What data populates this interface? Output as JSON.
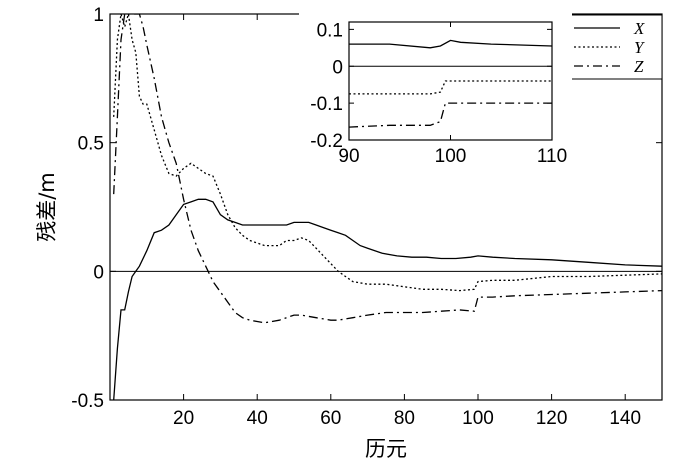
{
  "chart_data": [
    {
      "type": "line",
      "title": "",
      "xlabel": "历元",
      "ylabel": "残差/m",
      "xlim": [
        0,
        150
      ],
      "ylim": [
        -0.5,
        1
      ],
      "x_ticks": [
        "20",
        "40",
        "60",
        "80",
        "100",
        "120",
        "140"
      ],
      "y_ticks": [
        "-0.5",
        "0",
        "0.5",
        "1"
      ],
      "reference_line_y": 0,
      "grid": false,
      "legend_position": "top-right",
      "series": [
        {
          "name": "X",
          "style": "solid",
          "x": [
            1,
            2,
            3,
            4,
            5,
            6,
            7,
            8,
            10,
            12,
            14,
            16,
            18,
            20,
            22,
            24,
            26,
            28,
            30,
            32,
            34,
            36,
            38,
            40,
            42,
            44,
            46,
            48,
            50,
            52,
            54,
            56,
            58,
            60,
            62,
            64,
            66,
            68,
            70,
            74,
            78,
            82,
            86,
            90,
            94,
            98,
            100,
            104,
            110,
            120,
            130,
            140,
            150
          ],
          "values": [
            -0.5,
            -0.3,
            -0.15,
            -0.15,
            -0.08,
            -0.02,
            0.0,
            0.02,
            0.08,
            0.15,
            0.16,
            0.18,
            0.22,
            0.26,
            0.27,
            0.28,
            0.28,
            0.27,
            0.22,
            0.2,
            0.19,
            0.18,
            0.18,
            0.18,
            0.18,
            0.18,
            0.18,
            0.18,
            0.19,
            0.19,
            0.19,
            0.18,
            0.17,
            0.16,
            0.15,
            0.14,
            0.12,
            0.1,
            0.09,
            0.07,
            0.06,
            0.055,
            0.055,
            0.05,
            0.05,
            0.055,
            0.06,
            0.055,
            0.05,
            0.045,
            0.035,
            0.025,
            0.02
          ]
        },
        {
          "name": "Y",
          "style": "dotted",
          "x": [
            1,
            2,
            3,
            4,
            5,
            6,
            7,
            8,
            9,
            10,
            11,
            12,
            14,
            16,
            18,
            20,
            22,
            24,
            26,
            28,
            30,
            32,
            34,
            36,
            38,
            40,
            42,
            44,
            46,
            48,
            50,
            52,
            54,
            56,
            58,
            60,
            62,
            64,
            66,
            70,
            75,
            80,
            85,
            90,
            95,
            99,
            100,
            104,
            110,
            120,
            130,
            140,
            150
          ],
          "values": [
            0.6,
            0.9,
            1.0,
            0.95,
            1.0,
            0.9,
            0.85,
            0.68,
            0.65,
            0.65,
            0.6,
            0.55,
            0.45,
            0.38,
            0.37,
            0.4,
            0.42,
            0.4,
            0.38,
            0.37,
            0.3,
            0.22,
            0.17,
            0.14,
            0.12,
            0.11,
            0.1,
            0.1,
            0.1,
            0.12,
            0.12,
            0.13,
            0.12,
            0.09,
            0.06,
            0.03,
            0.0,
            -0.02,
            -0.04,
            -0.05,
            -0.05,
            -0.06,
            -0.07,
            -0.07,
            -0.075,
            -0.07,
            -0.04,
            -0.035,
            -0.035,
            -0.02,
            -0.02,
            -0.015,
            -0.01
          ]
        },
        {
          "name": "Z",
          "style": "dashdot",
          "x": [
            1,
            2,
            3,
            4,
            5,
            6,
            7,
            8,
            9,
            10,
            12,
            14,
            16,
            18,
            20,
            22,
            24,
            26,
            28,
            30,
            32,
            34,
            36,
            38,
            40,
            42,
            44,
            46,
            48,
            50,
            52,
            54,
            56,
            58,
            60,
            62,
            64,
            66,
            70,
            75,
            80,
            85,
            90,
            95,
            99,
            100,
            104,
            110,
            120,
            130,
            140,
            150
          ],
          "values": [
            0.3,
            0.6,
            0.9,
            1.0,
            1.0,
            1.0,
            1.0,
            1.0,
            0.95,
            0.88,
            0.75,
            0.6,
            0.5,
            0.42,
            0.28,
            0.16,
            0.08,
            0.02,
            -0.04,
            -0.08,
            -0.12,
            -0.16,
            -0.18,
            -0.19,
            -0.195,
            -0.2,
            -0.195,
            -0.19,
            -0.18,
            -0.17,
            -0.17,
            -0.175,
            -0.18,
            -0.185,
            -0.19,
            -0.19,
            -0.185,
            -0.18,
            -0.17,
            -0.16,
            -0.16,
            -0.16,
            -0.155,
            -0.15,
            -0.155,
            -0.1,
            -0.1,
            -0.095,
            -0.09,
            -0.085,
            -0.08,
            -0.075
          ]
        }
      ]
    },
    {
      "type": "line",
      "title": "",
      "xlabel": "",
      "ylabel": "",
      "xlim": [
        90,
        110
      ],
      "ylim": [
        -0.2,
        0.12
      ],
      "x_ticks": [
        "90",
        "100",
        "110"
      ],
      "y_ticks": [
        "0.1",
        "0",
        "-0.1",
        "-0.2"
      ],
      "reference_line_y": 0,
      "grid": false,
      "series": [
        {
          "name": "X",
          "style": "solid",
          "x": [
            90,
            94,
            98,
            99,
            100,
            101,
            104,
            110
          ],
          "values": [
            0.06,
            0.06,
            0.05,
            0.055,
            0.07,
            0.065,
            0.06,
            0.055
          ]
        },
        {
          "name": "Y",
          "style": "dotted",
          "x": [
            90,
            94,
            98,
            99,
            99.5,
            100,
            104,
            110
          ],
          "values": [
            -0.075,
            -0.075,
            -0.075,
            -0.07,
            -0.04,
            -0.04,
            -0.04,
            -0.04
          ]
        },
        {
          "name": "Z",
          "style": "dashdot",
          "x": [
            90,
            94,
            98,
            99,
            99.5,
            100,
            104,
            110
          ],
          "values": [
            -0.165,
            -0.16,
            -0.16,
            -0.15,
            -0.1,
            -0.1,
            -0.1,
            -0.1
          ]
        }
      ]
    }
  ]
}
